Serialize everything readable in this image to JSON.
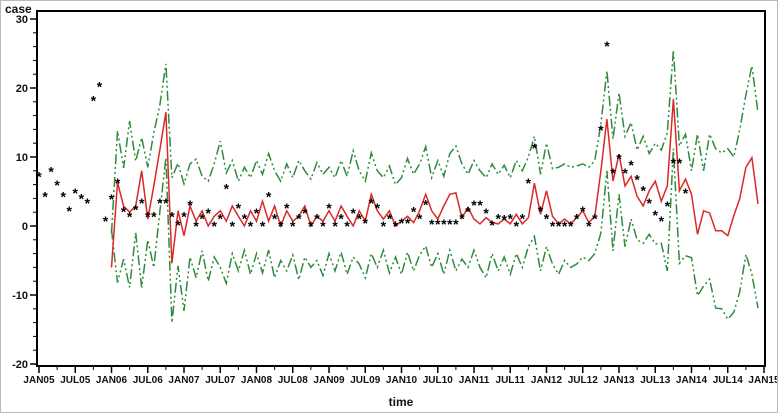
{
  "chart_data": {
    "type": "line",
    "title": "",
    "ylabel": "case",
    "xlabel": "time",
    "ylim": [
      -20,
      30
    ],
    "yticks": [
      30,
      20,
      10,
      0,
      -10,
      -20
    ],
    "y_minor_tick_step": 2,
    "x_total_months": 120,
    "months_per_labeled_tick": 6,
    "x_minor_tick_offset_months": 3,
    "x_tick_labels": [
      "JAN05",
      "JUL05",
      "JAN06",
      "JUL06",
      "JAN07",
      "JUL07",
      "JAN08",
      "JUL08",
      "JAN09",
      "JUL09",
      "JAN10",
      "JUL10",
      "JAN11",
      "JUL11",
      "JAN12",
      "JUL12",
      "JAN13",
      "JUL13",
      "JAN14",
      "JUL14",
      "JAN15"
    ],
    "grid": false,
    "legend": "none",
    "colors": {
      "observed": "#000000",
      "center_line": "#DC2828",
      "confidence_lines": "#2E8B3C",
      "axis": "#000000"
    },
    "series": [
      {
        "name": "observed-cases",
        "style": "scatter",
        "marker": "asterisk",
        "color": "#000000",
        "start_month": 0,
        "values": [
          7.5,
          4.6,
          8.2,
          6.2,
          4.6,
          2.5,
          5.1,
          4.3,
          3.6,
          18.5,
          20.5,
          1.0,
          4.2,
          6.5,
          2.4,
          1.7,
          2.7,
          3.6,
          1.7,
          1.7,
          3.6,
          3.6,
          1.7,
          0.4,
          1.7,
          3.3,
          0.3,
          1.4,
          2.2,
          0.3,
          1.4,
          5.7,
          0.3,
          2.9,
          1.4,
          0.3,
          2.2,
          0.3,
          4.6,
          1.4,
          0.3,
          2.9,
          0.3,
          1.4,
          2.2,
          0.3,
          1.4,
          0.3,
          2.9,
          0.3,
          1.4,
          0.3,
          2.2,
          1.4,
          0.7,
          3.6,
          2.9,
          0.3,
          1.4,
          0.3,
          0.7,
          0.7,
          2.4,
          1.4,
          3.4,
          0.6,
          0.6,
          0.6,
          0.6,
          0.6,
          1.4,
          2.4,
          3.3,
          3.3,
          2.2,
          0.4,
          1.4,
          1.2,
          1.4,
          0.3,
          1.4,
          6.5,
          11.6,
          2.5,
          1.4,
          0.3,
          0.3,
          0.3,
          0.3,
          1.4,
          2.5,
          0.3,
          1.4,
          14.2,
          26.4,
          8.0,
          10.1,
          8.0,
          9.1,
          7.0,
          5.4,
          3.6,
          1.9,
          1.0,
          3.2,
          9.4,
          9.4,
          5.1
        ]
      },
      {
        "name": "model-center-forecast",
        "style": "solid-line",
        "color": "#DC2828",
        "start_month": 12,
        "values": [
          -6.0,
          6.3,
          2.9,
          2.0,
          2.9,
          8.0,
          1.0,
          5.8,
          11.0,
          16.5,
          -5.4,
          2.2,
          -1.4,
          2.9,
          0.7,
          2.2,
          0.0,
          1.4,
          2.2,
          0.7,
          2.9,
          1.4,
          0.0,
          2.2,
          0.7,
          3.6,
          0.7,
          2.9,
          0.0,
          2.2,
          0.7,
          1.4,
          2.9,
          0.0,
          1.4,
          0.7,
          2.2,
          0.7,
          2.9,
          1.4,
          0.0,
          2.2,
          0.7,
          4.6,
          2.2,
          1.0,
          2.2,
          0.0,
          0.7,
          1.4,
          0.5,
          2.2,
          4.6,
          2.2,
          1.0,
          2.9,
          4.6,
          4.8,
          1.2,
          2.7,
          1.0,
          0.3,
          1.2,
          0.5,
          0.3,
          1.0,
          0.3,
          1.7,
          0.3,
          1.2,
          6.2,
          1.7,
          5.1,
          1.4,
          0.3,
          1.0,
          0.3,
          1.2,
          2.2,
          0.5,
          1.4,
          8.0,
          15.5,
          6.5,
          10.4,
          5.8,
          7.2,
          4.3,
          2.9,
          5.1,
          6.5,
          3.6,
          5.8,
          18.4,
          5.1,
          6.8,
          4.6,
          -1.2,
          2.2,
          1.9,
          -0.7,
          -0.7,
          -1.4,
          1.5,
          4.0,
          8.5,
          9.9,
          3.2
        ]
      },
      {
        "name": "upper-confidence-limit",
        "style": "dash-dot-line",
        "color": "#2E8B3C",
        "start_month": 12,
        "values": [
          -1.0,
          13.8,
          8.4,
          15.2,
          9.4,
          12.8,
          8.5,
          13.5,
          17.5,
          23.5,
          7.0,
          9.1,
          6.1,
          9.0,
          9.7,
          7.2,
          6.5,
          9.0,
          12.3,
          7.7,
          9.5,
          6.5,
          8.5,
          7.0,
          9.5,
          7.5,
          10.5,
          8.0,
          6.5,
          9.0,
          7.0,
          9.5,
          8.0,
          6.8,
          9.2,
          7.5,
          8.5,
          7.0,
          9.5,
          7.2,
          10.9,
          8.0,
          6.5,
          10.6,
          8.0,
          7.0,
          8.7,
          6.0,
          7.0,
          9.8,
          7.5,
          9.0,
          11.5,
          7.0,
          9.5,
          7.2,
          10.5,
          11.6,
          9.0,
          7.5,
          9.5,
          8.0,
          7.0,
          9.0,
          7.5,
          8.8,
          7.0,
          9.5,
          8.0,
          10.0,
          13.0,
          7.5,
          12.0,
          8.3,
          8.5,
          9.0,
          8.5,
          8.7,
          9.0,
          8.5,
          9.5,
          14.8,
          22.5,
          12.6,
          19.3,
          13.0,
          15.0,
          11.0,
          13.0,
          10.5,
          12.0,
          11.0,
          13.5,
          25.5,
          11.6,
          13.3,
          8.0,
          13.3,
          8.0,
          13.3,
          11.2,
          10.6,
          11.2,
          10.0,
          14.0,
          19.0,
          23.2,
          16.4
        ]
      },
      {
        "name": "lower-confidence-limit",
        "style": "dash-dot-line",
        "color": "#2E8B3C",
        "start_month": 12,
        "values": [
          -0.5,
          -8.2,
          -4.8,
          -8.9,
          -1.0,
          -8.9,
          -2.0,
          -6.0,
          2.0,
          9.9,
          -14.0,
          -5.8,
          -12.3,
          -4.5,
          -7.5,
          -3.6,
          -8.0,
          -4.5,
          -6.0,
          -8.3,
          -4.0,
          -6.5,
          -3.5,
          -7.0,
          -4.0,
          -6.8,
          -3.5,
          -7.5,
          -5.0,
          -6.5,
          -4.2,
          -7.8,
          -4.5,
          -6.0,
          -5.0,
          -7.2,
          -4.0,
          -6.5,
          -3.8,
          -7.0,
          -4.5,
          -5.5,
          -7.5,
          -4.0,
          -6.0,
          -3.5,
          -6.8,
          -4.5,
          -7.0,
          -3.8,
          -6.5,
          -4.2,
          -2.9,
          -6.0,
          -4.0,
          -7.0,
          -3.5,
          -6.5,
          -4.8,
          -6.0,
          -3.5,
          -6.0,
          -7.5,
          -4.0,
          -6.5,
          -4.5,
          -7.0,
          -4.0,
          -6.0,
          -3.0,
          -1.5,
          -6.5,
          -3.0,
          -5.5,
          -7.0,
          -5.0,
          -6.0,
          -5.5,
          -4.5,
          -5.0,
          -4.0,
          -1.0,
          8.0,
          -3.6,
          4.6,
          -3.0,
          1.0,
          -2.0,
          -2.5,
          -1.2,
          -2.6,
          -2.5,
          -6.5,
          11.2,
          -5.4,
          -4.3,
          -4.6,
          -10.1,
          -8.7,
          -7.7,
          -11.9,
          -12.0,
          -13.5,
          -12.5,
          -9.5,
          -4.1,
          -7.0,
          -11.9
        ]
      }
    ]
  }
}
